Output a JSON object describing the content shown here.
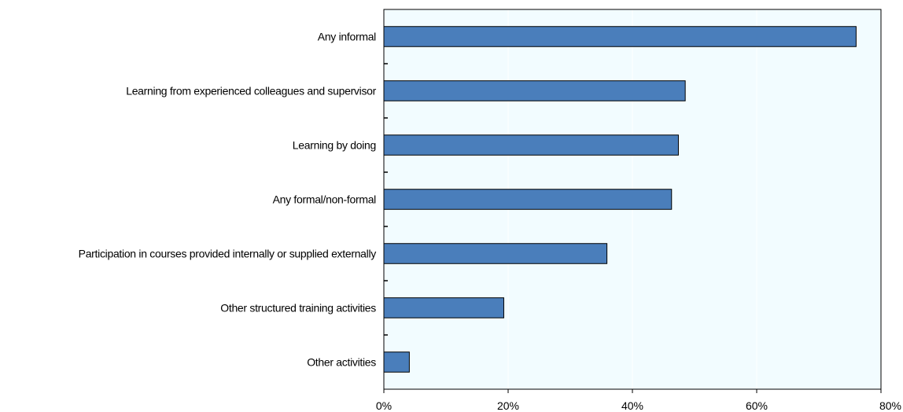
{
  "chart_data": {
    "type": "bar",
    "orientation": "horizontal",
    "categories": [
      "Any informal",
      "Learning from experienced colleagues and supervisor",
      "Learning by doing",
      "Any formal/non-formal",
      "Participation in courses provided internally or supplied externally",
      "Other structured training activities",
      "Other activities"
    ],
    "values": [
      76,
      48.5,
      47.4,
      46.3,
      35.9,
      19.3,
      4.1
    ],
    "xlim": [
      0,
      80
    ],
    "xticks": [
      0,
      20,
      40,
      60,
      80
    ],
    "xtick_labels": [
      "0%",
      "20%",
      "40%",
      "60%",
      "80%"
    ],
    "title": "",
    "xlabel": "",
    "ylabel": "",
    "grid": "vertical",
    "colors": {
      "bar_fill": "#4a7ebb",
      "bar_stroke": "#000000",
      "plot_background": "#f2fcff",
      "grid": "#ffffff"
    }
  }
}
